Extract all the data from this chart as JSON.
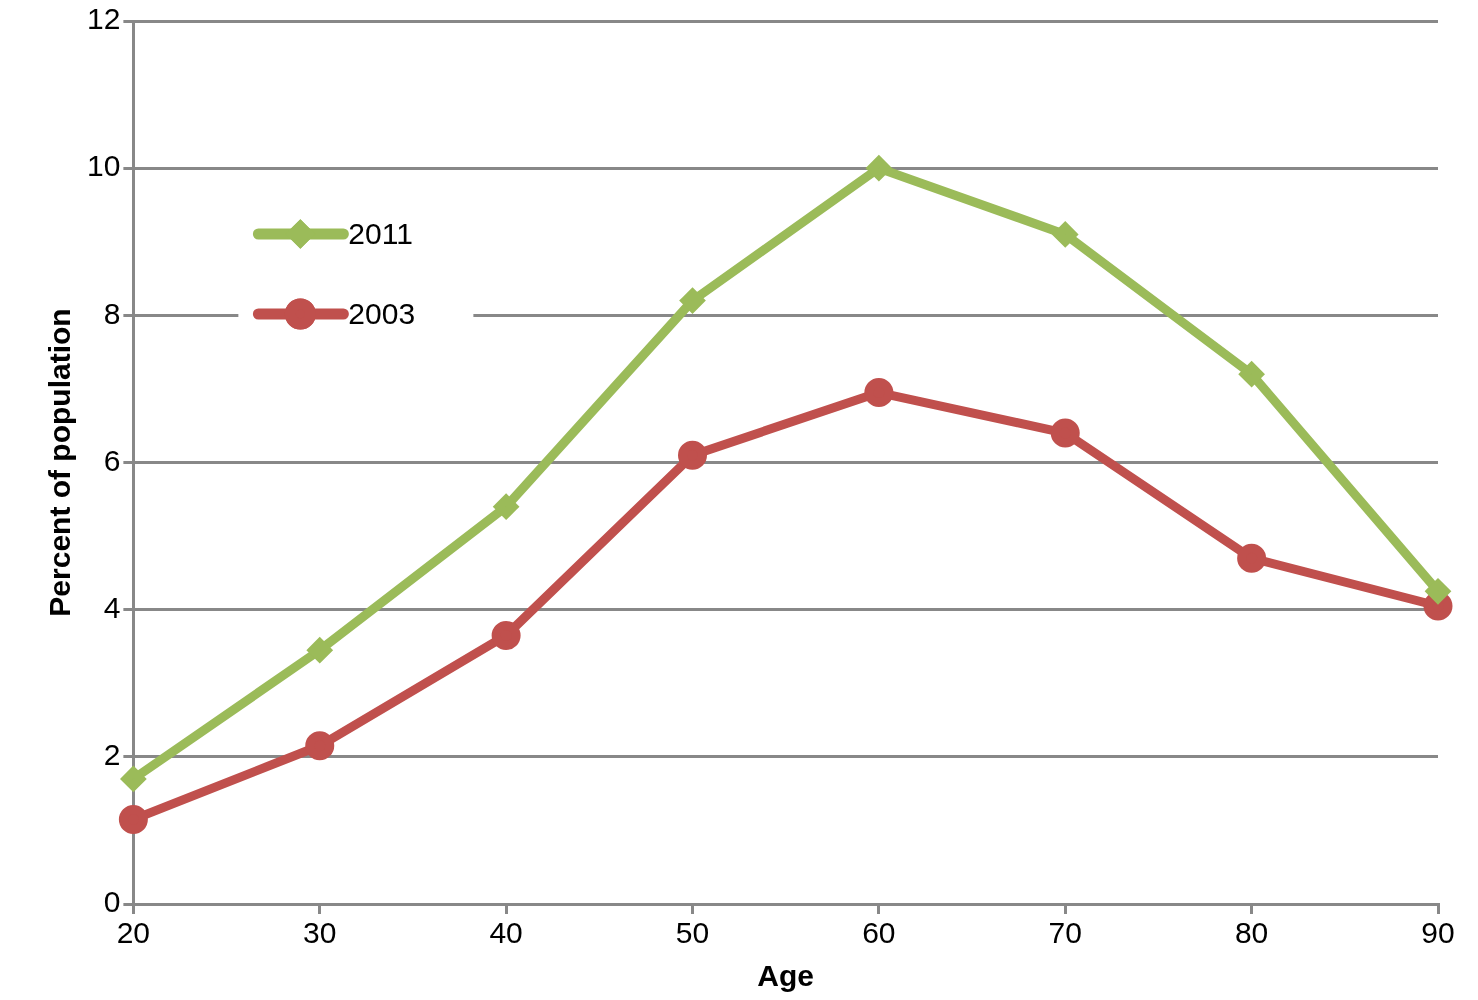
{
  "chart_data": {
    "type": "line",
    "xlabel": "Age",
    "ylabel": "Percent of population",
    "x": [
      20,
      30,
      40,
      50,
      60,
      70,
      80,
      90
    ],
    "series": [
      {
        "name": "2011",
        "color": "#9bbb59",
        "marker": "diamond",
        "values": [
          1.7,
          3.45,
          5.4,
          8.2,
          10,
          9.1,
          7.2,
          4.25
        ]
      },
      {
        "name": "2003",
        "color": "#c0504d",
        "marker": "circle",
        "values": [
          1.15,
          2.15,
          3.65,
          6.1,
          6.95,
          6.4,
          4.7,
          4.05
        ]
      }
    ],
    "xlim": [
      20,
      90
    ],
    "xticks": [
      20,
      30,
      40,
      50,
      60,
      70,
      80,
      90
    ],
    "ylim": [
      0,
      12
    ],
    "yticks": [
      0,
      2,
      4,
      6,
      8,
      10,
      12
    ],
    "grid": "y",
    "legend": "top left",
    "line_style": "solid"
  }
}
